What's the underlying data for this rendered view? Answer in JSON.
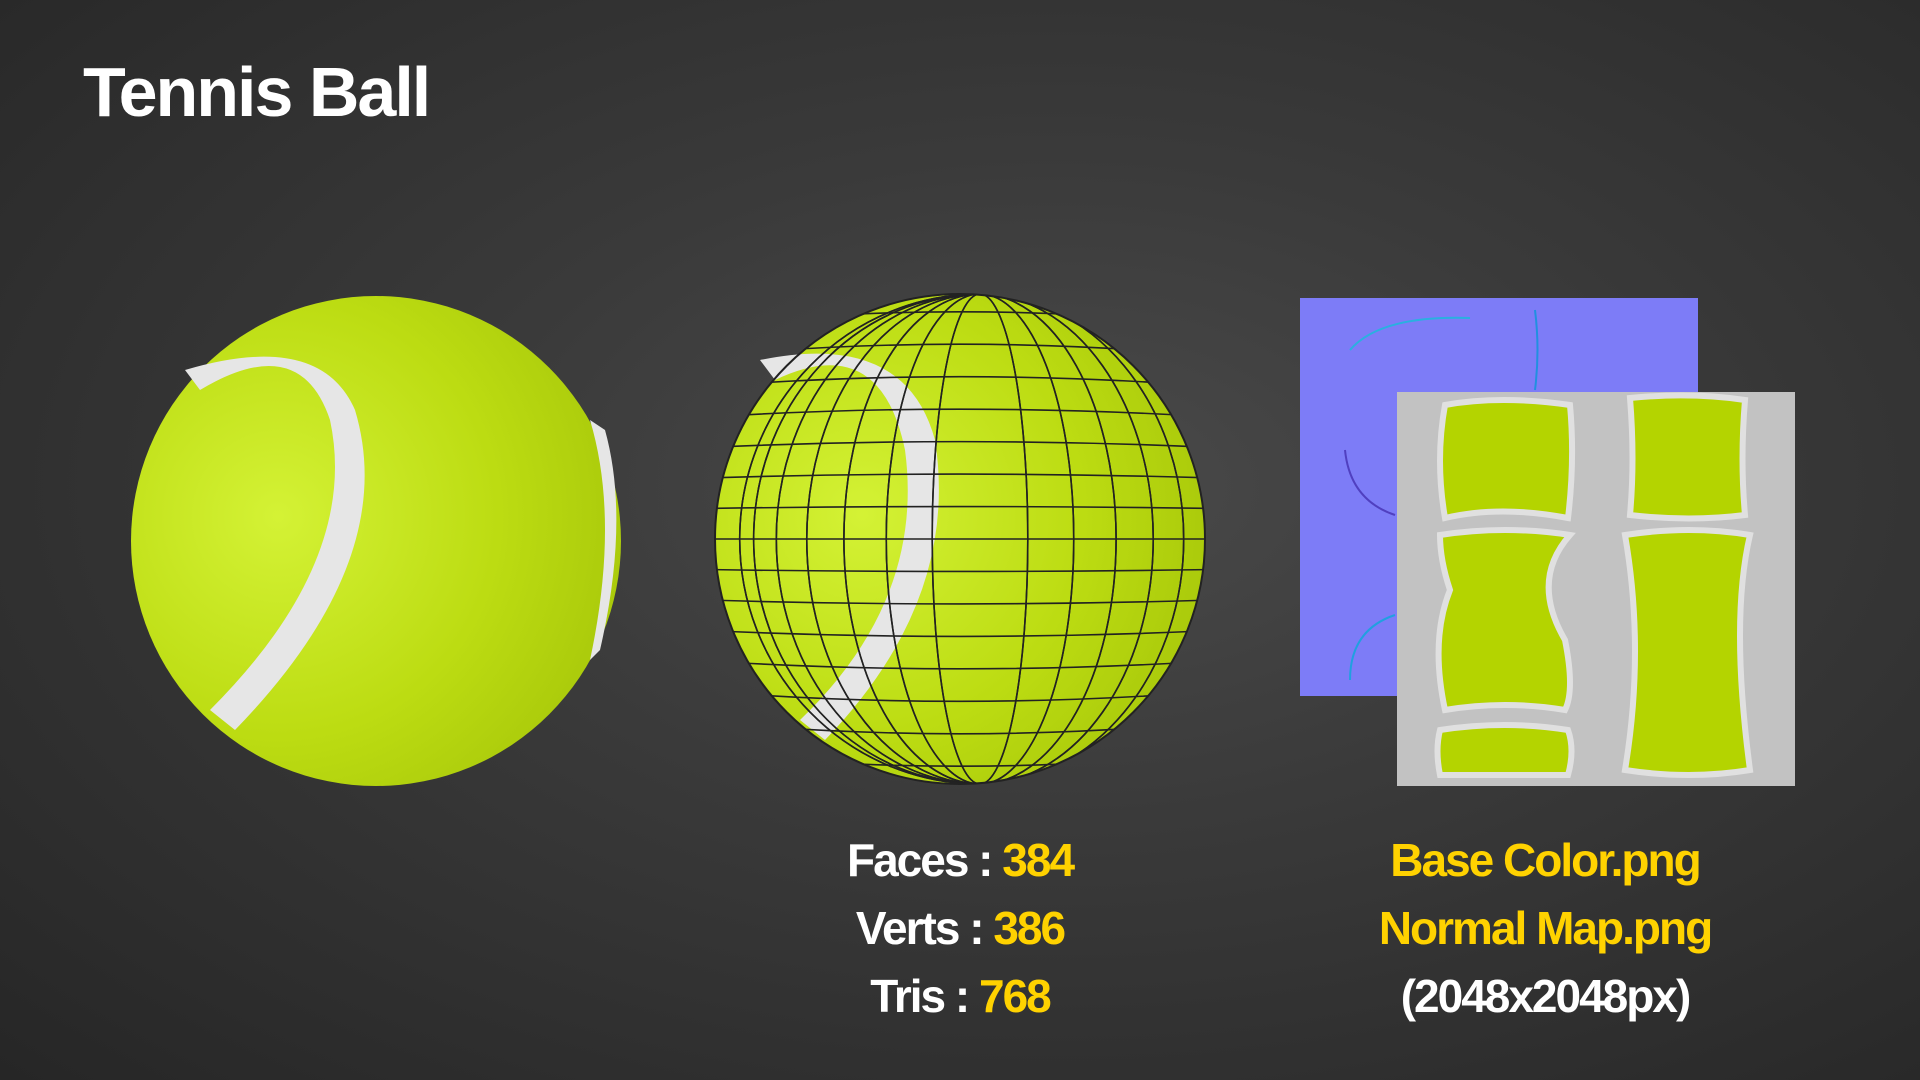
{
  "title": "Tennis Ball",
  "colors": {
    "accent": "#ffd200",
    "ball": "#c0df14",
    "seam": "#e8e8e8",
    "normal_map": "#7d7cf7",
    "base_color_bg": "#c2c2c2"
  },
  "stats": [
    {
      "label": "Faces :",
      "value": "384"
    },
    {
      "label": "Verts :",
      "value": "386"
    },
    {
      "label": "Tris :",
      "value": "768"
    }
  ],
  "textures": {
    "files": [
      "Base Color.png",
      "Normal Map.png"
    ],
    "resolution": "(2048x2048px)"
  }
}
